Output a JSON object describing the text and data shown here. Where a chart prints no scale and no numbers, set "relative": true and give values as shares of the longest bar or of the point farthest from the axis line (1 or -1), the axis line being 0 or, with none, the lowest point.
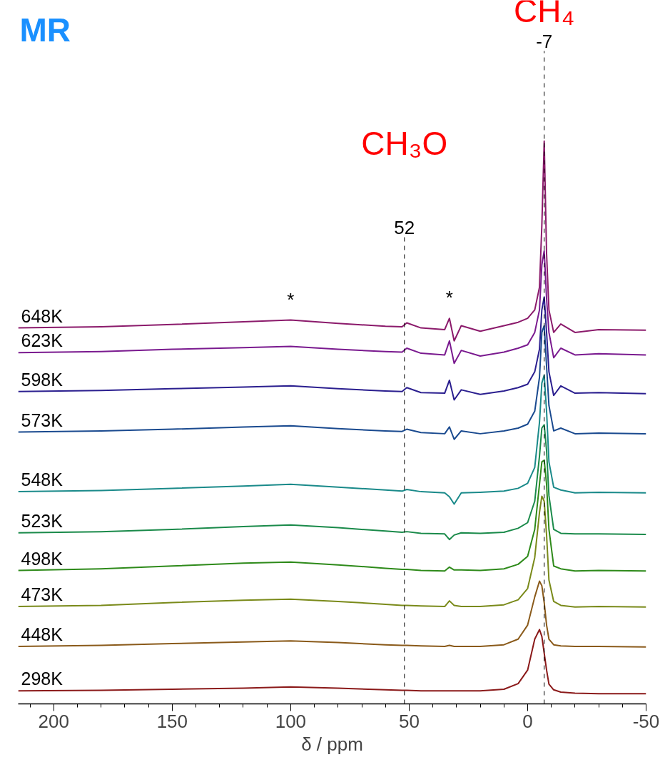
{
  "chart_data": {
    "type": "line",
    "title": "MR",
    "xlabel": "δ / ppm",
    "relative": true,
    "xlim": [
      215,
      -50
    ],
    "xticks": [
      200,
      150,
      100,
      50,
      0,
      -50
    ],
    "grid": false,
    "line_style": "solid",
    "marker": "none",
    "x": [
      215,
      180,
      150,
      120,
      100,
      80,
      60,
      53,
      51,
      45,
      35,
      33,
      31,
      28,
      20,
      10,
      4,
      0,
      -3,
      -5,
      -6,
      -7,
      -8,
      -9,
      -11,
      -14,
      -20,
      -30,
      -50
    ],
    "series": [
      {
        "name": "648K",
        "color": "#8b1a6b",
        "values": [
          0.668,
          0.67,
          0.674,
          0.679,
          0.682,
          0.676,
          0.671,
          0.67,
          0.677,
          0.668,
          0.665,
          0.685,
          0.645,
          0.672,
          0.662,
          0.672,
          0.678,
          0.685,
          0.7,
          0.74,
          0.85,
          1.0,
          0.8,
          0.7,
          0.66,
          0.675,
          0.66,
          0.665,
          0.664
        ]
      },
      {
        "name": "623K",
        "color": "#7a1a8f",
        "values": [
          0.624,
          0.626,
          0.63,
          0.633,
          0.635,
          0.63,
          0.626,
          0.625,
          0.632,
          0.623,
          0.62,
          0.645,
          0.605,
          0.628,
          0.618,
          0.625,
          0.632,
          0.638,
          0.66,
          0.7,
          0.78,
          0.805,
          0.72,
          0.66,
          0.615,
          0.632,
          0.62,
          0.622,
          0.62
        ]
      },
      {
        "name": "598K",
        "color": "#2b1f8f",
        "values": [
          0.555,
          0.557,
          0.56,
          0.563,
          0.565,
          0.56,
          0.556,
          0.555,
          0.562,
          0.553,
          0.552,
          0.575,
          0.54,
          0.558,
          0.55,
          0.556,
          0.562,
          0.568,
          0.59,
          0.63,
          0.7,
          0.723,
          0.66,
          0.59,
          0.548,
          0.565,
          0.552,
          0.553,
          0.551
        ]
      },
      {
        "name": "573K",
        "color": "#1a4a8f",
        "values": [
          0.483,
          0.485,
          0.488,
          0.492,
          0.494,
          0.489,
          0.485,
          0.484,
          0.488,
          0.482,
          0.48,
          0.492,
          0.47,
          0.485,
          0.48,
          0.485,
          0.49,
          0.497,
          0.52,
          0.58,
          0.66,
          0.672,
          0.6,
          0.53,
          0.485,
          0.49,
          0.48,
          0.481,
          0.48
        ]
      },
      {
        "name": "548K",
        "color": "#1a8a8a",
        "values": [
          0.377,
          0.379,
          0.383,
          0.387,
          0.39,
          0.385,
          0.38,
          0.378,
          0.381,
          0.377,
          0.375,
          0.368,
          0.355,
          0.375,
          0.376,
          0.378,
          0.383,
          0.392,
          0.42,
          0.5,
          0.57,
          0.584,
          0.52,
          0.43,
          0.385,
          0.38,
          0.375,
          0.376,
          0.375
        ]
      },
      {
        "name": "523K",
        "color": "#1a8a4a",
        "values": [
          0.304,
          0.306,
          0.31,
          0.315,
          0.318,
          0.313,
          0.307,
          0.305,
          0.306,
          0.303,
          0.302,
          0.292,
          0.3,
          0.304,
          0.303,
          0.305,
          0.312,
          0.322,
          0.36,
          0.44,
          0.49,
          0.496,
          0.45,
          0.37,
          0.31,
          0.303,
          0.302,
          0.302,
          0.301
        ]
      },
      {
        "name": "498K",
        "color": "#2e8a1a",
        "values": [
          0.237,
          0.24,
          0.245,
          0.25,
          0.252,
          0.247,
          0.241,
          0.239,
          0.239,
          0.237,
          0.236,
          0.243,
          0.238,
          0.238,
          0.237,
          0.24,
          0.248,
          0.262,
          0.31,
          0.39,
          0.43,
          0.433,
          0.39,
          0.31,
          0.245,
          0.24,
          0.236,
          0.237,
          0.236
        ]
      },
      {
        "name": "473K",
        "color": "#7a8a1a",
        "values": [
          0.173,
          0.175,
          0.18,
          0.184,
          0.186,
          0.182,
          0.177,
          0.175,
          0.175,
          0.174,
          0.173,
          0.183,
          0.175,
          0.173,
          0.173,
          0.176,
          0.185,
          0.205,
          0.26,
          0.34,
          0.369,
          0.36,
          0.3,
          0.22,
          0.182,
          0.175,
          0.172,
          0.173,
          0.172
        ]
      },
      {
        "name": "448K",
        "color": "#8a5a1a",
        "values": [
          0.102,
          0.104,
          0.107,
          0.11,
          0.112,
          0.109,
          0.105,
          0.104,
          0.104,
          0.103,
          0.102,
          0.104,
          0.102,
          0.102,
          0.102,
          0.105,
          0.115,
          0.14,
          0.19,
          0.218,
          0.21,
          0.18,
          0.14,
          0.115,
          0.105,
          0.103,
          0.102,
          0.102,
          0.101
        ]
      },
      {
        "name": "298K",
        "color": "#8b1a1a",
        "values": [
          0.023,
          0.024,
          0.026,
          0.028,
          0.03,
          0.028,
          0.025,
          0.024,
          0.024,
          0.023,
          0.023,
          0.023,
          0.023,
          0.023,
          0.023,
          0.026,
          0.036,
          0.06,
          0.115,
          0.132,
          0.12,
          0.09,
          0.06,
          0.035,
          0.025,
          0.021,
          0.019,
          0.018,
          0.018
        ]
      }
    ],
    "ref_lines": [
      {
        "axis": "x",
        "value": -7,
        "label": "-7",
        "line_style": "dashed",
        "color": "#000000"
      },
      {
        "axis": "x",
        "value": 52,
        "label": "52",
        "line_style": "dashed",
        "color": "#000000"
      }
    ],
    "annotations": [
      "CH₄",
      "CH₃O",
      {
        "text": "*",
        "x": 100,
        "y": 0.682
      },
      {
        "text": "*",
        "x": 33,
        "y": 0.685
      }
    ]
  }
}
